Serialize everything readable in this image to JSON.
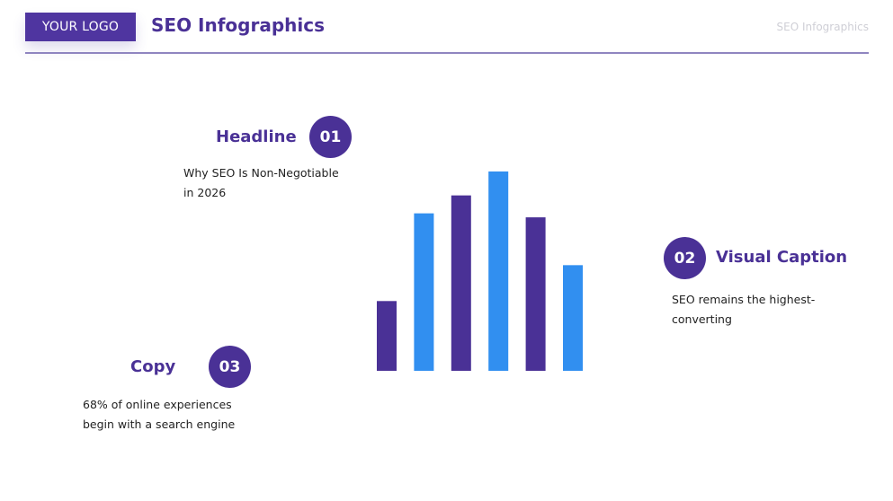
{
  "header": {
    "logo": "YOUR LOGO",
    "title": "SEO Infographics",
    "corner_label": "SEO Infographics"
  },
  "items": [
    {
      "number": "01",
      "heading": "Headline",
      "text_line1": "Why SEO Is Non-Negotiable",
      "text_line2": "in 2026"
    },
    {
      "number": "02",
      "heading": "Visual Caption",
      "text_line1": "SEO remains the highest-",
      "text_line2": "converting"
    },
    {
      "number": "03",
      "heading": "Copy",
      "text_line1": "68% of online experiences",
      "text_line2": "begin with a search engine"
    }
  ],
  "colors": {
    "primary": "#4a3196",
    "secondary": "#318ff0"
  },
  "chart_data": {
    "type": "bar",
    "values": [
      35,
      79,
      88,
      100,
      77,
      53
    ],
    "bar_colors": [
      "#4a3196",
      "#318ff0",
      "#4a3196",
      "#318ff0",
      "#4a3196",
      "#318ff0"
    ],
    "axes": "none",
    "grid": false,
    "legend": "none"
  }
}
